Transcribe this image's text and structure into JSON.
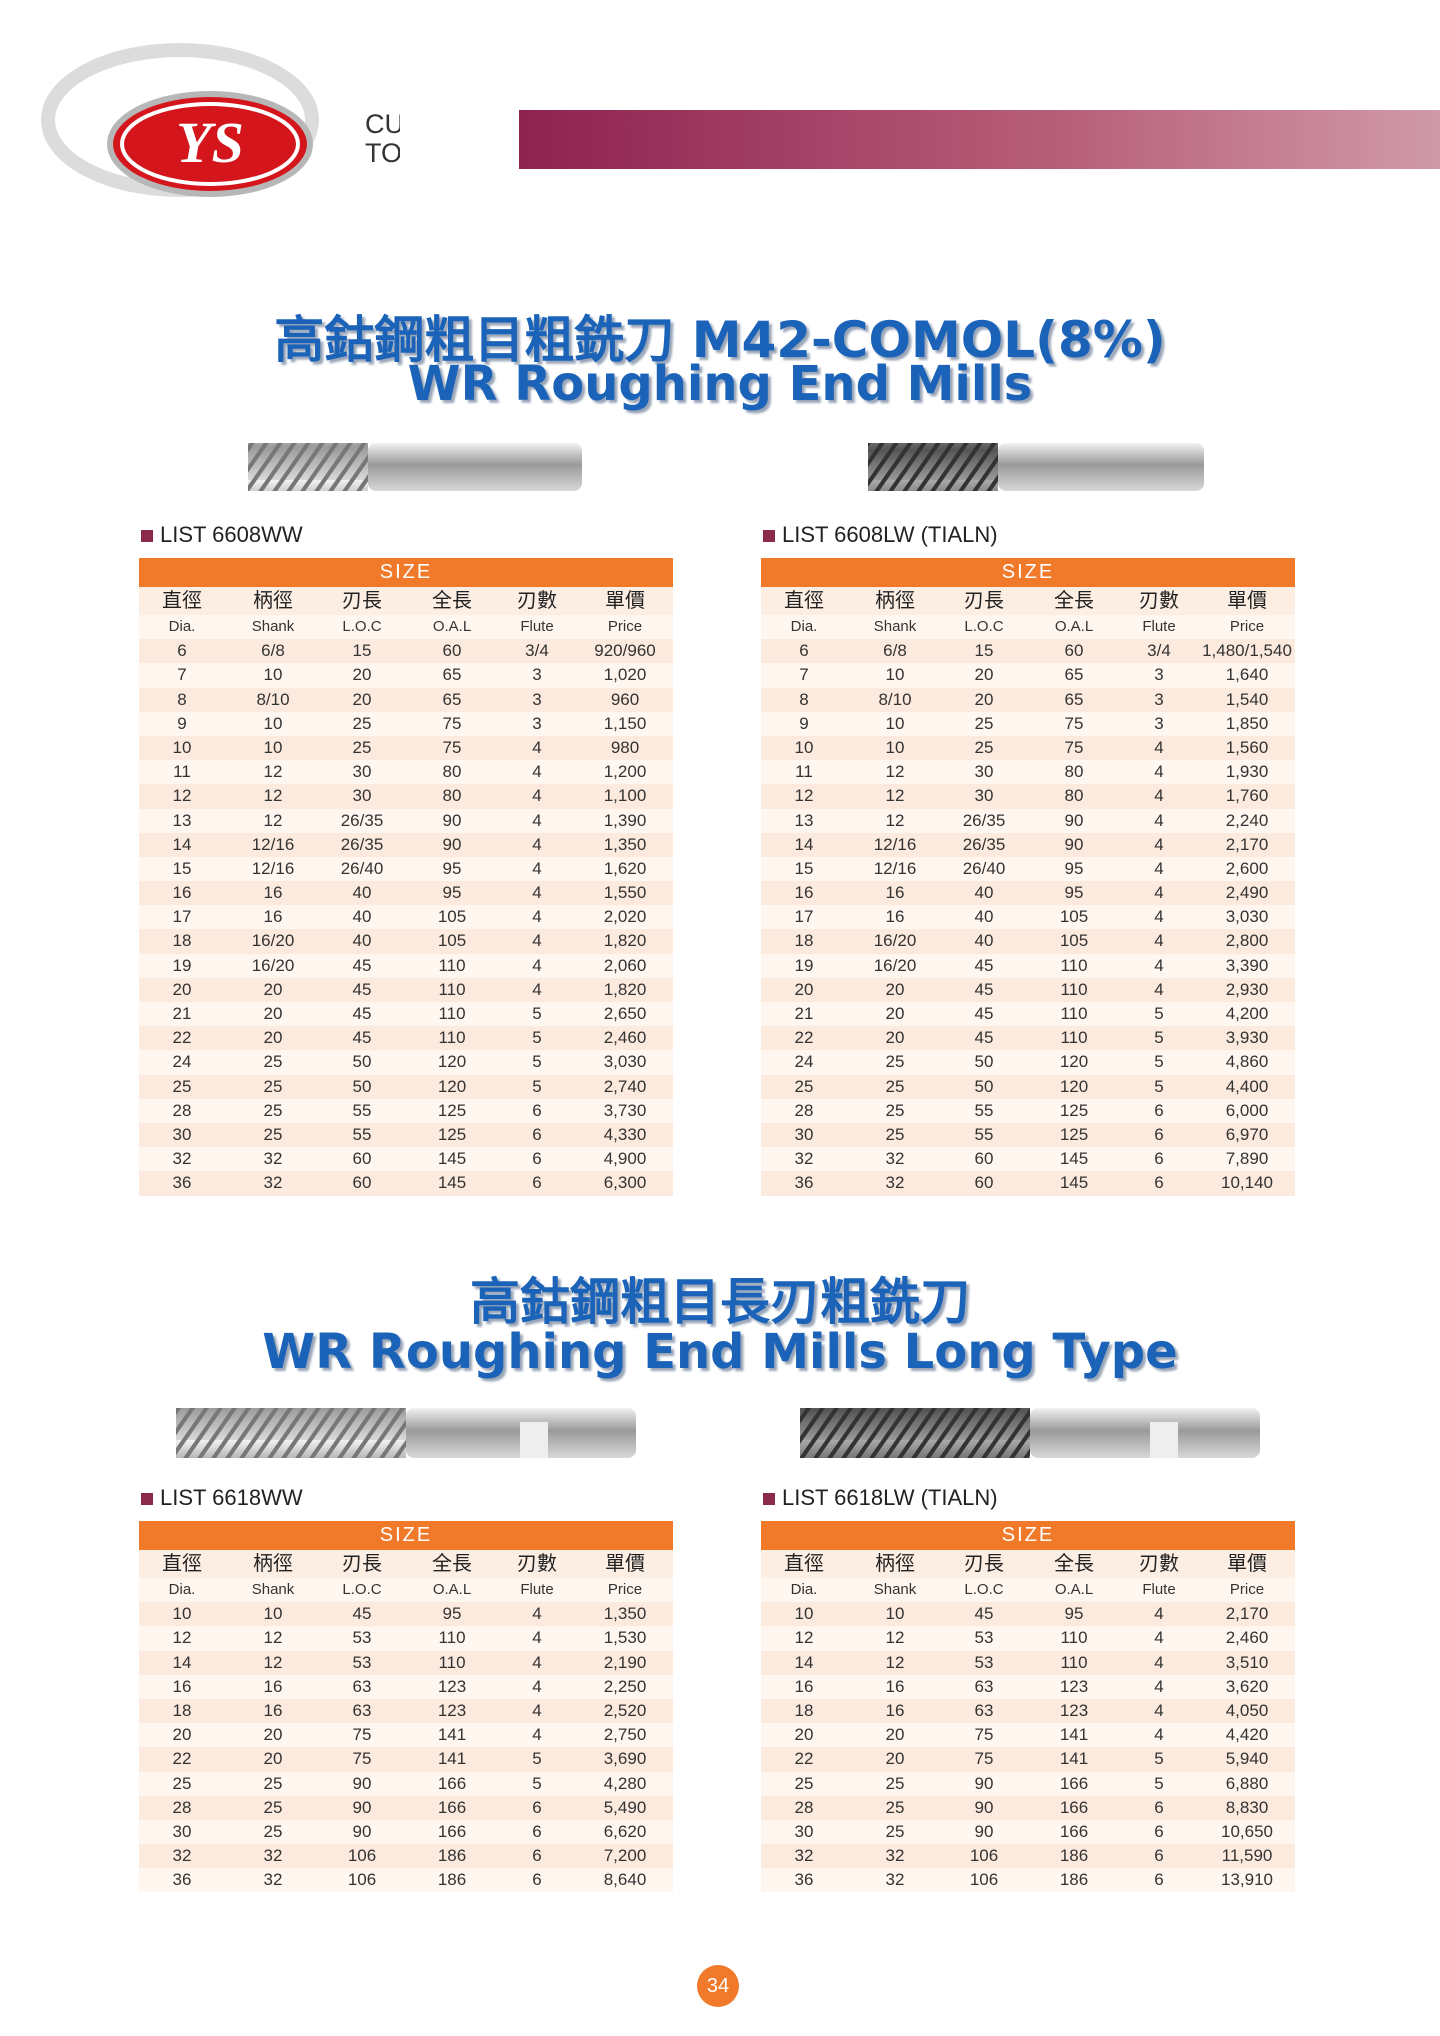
{
  "logo": {
    "mark": "YS",
    "line1": "CUTTING",
    "line2": "TOOLS"
  },
  "sections": [
    {
      "title_zh": "高鈷鋼粗目粗銑刀 M42-COMOL(8%)",
      "title_en": "WR Roughing End Mills"
    },
    {
      "title_zh": "高鈷鋼粗目長刃粗銑刀",
      "title_en": "WR Roughing End Mills Long Type"
    }
  ],
  "tables": [
    {
      "list": "LIST 6608WW",
      "size": "SIZE",
      "headers_zh": [
        "直徑",
        "柄徑",
        "刃長",
        "全長",
        "刃數",
        "單價"
      ],
      "headers_en": [
        "Dia.",
        "Shank",
        "L.O.C",
        "O.A.L",
        "Flute",
        "Price"
      ],
      "rows": [
        [
          "6",
          "6/8",
          "15",
          "60",
          "3/4",
          "920/960"
        ],
        [
          "7",
          "10",
          "20",
          "65",
          "3",
          "1,020"
        ],
        [
          "8",
          "8/10",
          "20",
          "65",
          "3",
          "960"
        ],
        [
          "9",
          "10",
          "25",
          "75",
          "3",
          "1,150"
        ],
        [
          "10",
          "10",
          "25",
          "75",
          "4",
          "980"
        ],
        [
          "11",
          "12",
          "30",
          "80",
          "4",
          "1,200"
        ],
        [
          "12",
          "12",
          "30",
          "80",
          "4",
          "1,100"
        ],
        [
          "13",
          "12",
          "26/35",
          "90",
          "4",
          "1,390"
        ],
        [
          "14",
          "12/16",
          "26/35",
          "90",
          "4",
          "1,350"
        ],
        [
          "15",
          "12/16",
          "26/40",
          "95",
          "4",
          "1,620"
        ],
        [
          "16",
          "16",
          "40",
          "95",
          "4",
          "1,550"
        ],
        [
          "17",
          "16",
          "40",
          "105",
          "4",
          "2,020"
        ],
        [
          "18",
          "16/20",
          "40",
          "105",
          "4",
          "1,820"
        ],
        [
          "19",
          "16/20",
          "45",
          "110",
          "4",
          "2,060"
        ],
        [
          "20",
          "20",
          "45",
          "110",
          "4",
          "1,820"
        ],
        [
          "21",
          "20",
          "45",
          "110",
          "5",
          "2,650"
        ],
        [
          "22",
          "20",
          "45",
          "110",
          "5",
          "2,460"
        ],
        [
          "24",
          "25",
          "50",
          "120",
          "5",
          "3,030"
        ],
        [
          "25",
          "25",
          "50",
          "120",
          "5",
          "2,740"
        ],
        [
          "28",
          "25",
          "55",
          "125",
          "6",
          "3,730"
        ],
        [
          "30",
          "25",
          "55",
          "125",
          "6",
          "4,330"
        ],
        [
          "32",
          "32",
          "60",
          "145",
          "6",
          "4,900"
        ],
        [
          "36",
          "32",
          "60",
          "145",
          "6",
          "6,300"
        ]
      ]
    },
    {
      "list": "LIST 6608LW (TIALN)",
      "size": "SIZE",
      "headers_zh": [
        "直徑",
        "柄徑",
        "刃長",
        "全長",
        "刃數",
        "單價"
      ],
      "headers_en": [
        "Dia.",
        "Shank",
        "L.O.C",
        "O.A.L",
        "Flute",
        "Price"
      ],
      "rows": [
        [
          "6",
          "6/8",
          "15",
          "60",
          "3/4",
          "1,480/1,540"
        ],
        [
          "7",
          "10",
          "20",
          "65",
          "3",
          "1,640"
        ],
        [
          "8",
          "8/10",
          "20",
          "65",
          "3",
          "1,540"
        ],
        [
          "9",
          "10",
          "25",
          "75",
          "3",
          "1,850"
        ],
        [
          "10",
          "10",
          "25",
          "75",
          "4",
          "1,560"
        ],
        [
          "11",
          "12",
          "30",
          "80",
          "4",
          "1,930"
        ],
        [
          "12",
          "12",
          "30",
          "80",
          "4",
          "1,760"
        ],
        [
          "13",
          "12",
          "26/35",
          "90",
          "4",
          "2,240"
        ],
        [
          "14",
          "12/16",
          "26/35",
          "90",
          "4",
          "2,170"
        ],
        [
          "15",
          "12/16",
          "26/40",
          "95",
          "4",
          "2,600"
        ],
        [
          "16",
          "16",
          "40",
          "95",
          "4",
          "2,490"
        ],
        [
          "17",
          "16",
          "40",
          "105",
          "4",
          "3,030"
        ],
        [
          "18",
          "16/20",
          "40",
          "105",
          "4",
          "2,800"
        ],
        [
          "19",
          "16/20",
          "45",
          "110",
          "4",
          "3,390"
        ],
        [
          "20",
          "20",
          "45",
          "110",
          "4",
          "2,930"
        ],
        [
          "21",
          "20",
          "45",
          "110",
          "5",
          "4,200"
        ],
        [
          "22",
          "20",
          "45",
          "110",
          "5",
          "3,930"
        ],
        [
          "24",
          "25",
          "50",
          "120",
          "5",
          "4,860"
        ],
        [
          "25",
          "25",
          "50",
          "120",
          "5",
          "4,400"
        ],
        [
          "28",
          "25",
          "55",
          "125",
          "6",
          "6,000"
        ],
        [
          "30",
          "25",
          "55",
          "125",
          "6",
          "6,970"
        ],
        [
          "32",
          "32",
          "60",
          "145",
          "6",
          "7,890"
        ],
        [
          "36",
          "32",
          "60",
          "145",
          "6",
          "10,140"
        ]
      ]
    },
    {
      "list": "LIST 6618WW",
      "size": "SIZE",
      "headers_zh": [
        "直徑",
        "柄徑",
        "刃長",
        "全長",
        "刃數",
        "單價"
      ],
      "headers_en": [
        "Dia.",
        "Shank",
        "L.O.C",
        "O.A.L",
        "Flute",
        "Price"
      ],
      "rows": [
        [
          "10",
          "10",
          "45",
          "95",
          "4",
          "1,350"
        ],
        [
          "12",
          "12",
          "53",
          "110",
          "4",
          "1,530"
        ],
        [
          "14",
          "12",
          "53",
          "110",
          "4",
          "2,190"
        ],
        [
          "16",
          "16",
          "63",
          "123",
          "4",
          "2,250"
        ],
        [
          "18",
          "16",
          "63",
          "123",
          "4",
          "2,520"
        ],
        [
          "20",
          "20",
          "75",
          "141",
          "4",
          "2,750"
        ],
        [
          "22",
          "20",
          "75",
          "141",
          "5",
          "3,690"
        ],
        [
          "25",
          "25",
          "90",
          "166",
          "5",
          "4,280"
        ],
        [
          "28",
          "25",
          "90",
          "166",
          "6",
          "5,490"
        ],
        [
          "30",
          "25",
          "90",
          "166",
          "6",
          "6,620"
        ],
        [
          "32",
          "32",
          "106",
          "186",
          "6",
          "7,200"
        ],
        [
          "36",
          "32",
          "106",
          "186",
          "6",
          "8,640"
        ]
      ]
    },
    {
      "list": "LIST 6618LW (TIALN)",
      "size": "SIZE",
      "headers_zh": [
        "直徑",
        "柄徑",
        "刃長",
        "全長",
        "刃數",
        "單價"
      ],
      "headers_en": [
        "Dia.",
        "Shank",
        "L.O.C",
        "O.A.L",
        "Flute",
        "Price"
      ],
      "rows": [
        [
          "10",
          "10",
          "45",
          "95",
          "4",
          "2,170"
        ],
        [
          "12",
          "12",
          "53",
          "110",
          "4",
          "2,460"
        ],
        [
          "14",
          "12",
          "53",
          "110",
          "4",
          "3,510"
        ],
        [
          "16",
          "16",
          "63",
          "123",
          "4",
          "3,620"
        ],
        [
          "18",
          "16",
          "63",
          "123",
          "4",
          "4,050"
        ],
        [
          "20",
          "20",
          "75",
          "141",
          "4",
          "4,420"
        ],
        [
          "22",
          "20",
          "75",
          "141",
          "5",
          "5,940"
        ],
        [
          "25",
          "25",
          "90",
          "166",
          "5",
          "6,880"
        ],
        [
          "28",
          "25",
          "90",
          "166",
          "6",
          "8,830"
        ],
        [
          "30",
          "25",
          "90",
          "166",
          "6",
          "10,650"
        ],
        [
          "32",
          "32",
          "106",
          "186",
          "6",
          "11,590"
        ],
        [
          "36",
          "32",
          "106",
          "186",
          "6",
          "13,910"
        ]
      ]
    }
  ],
  "page_number": "34"
}
